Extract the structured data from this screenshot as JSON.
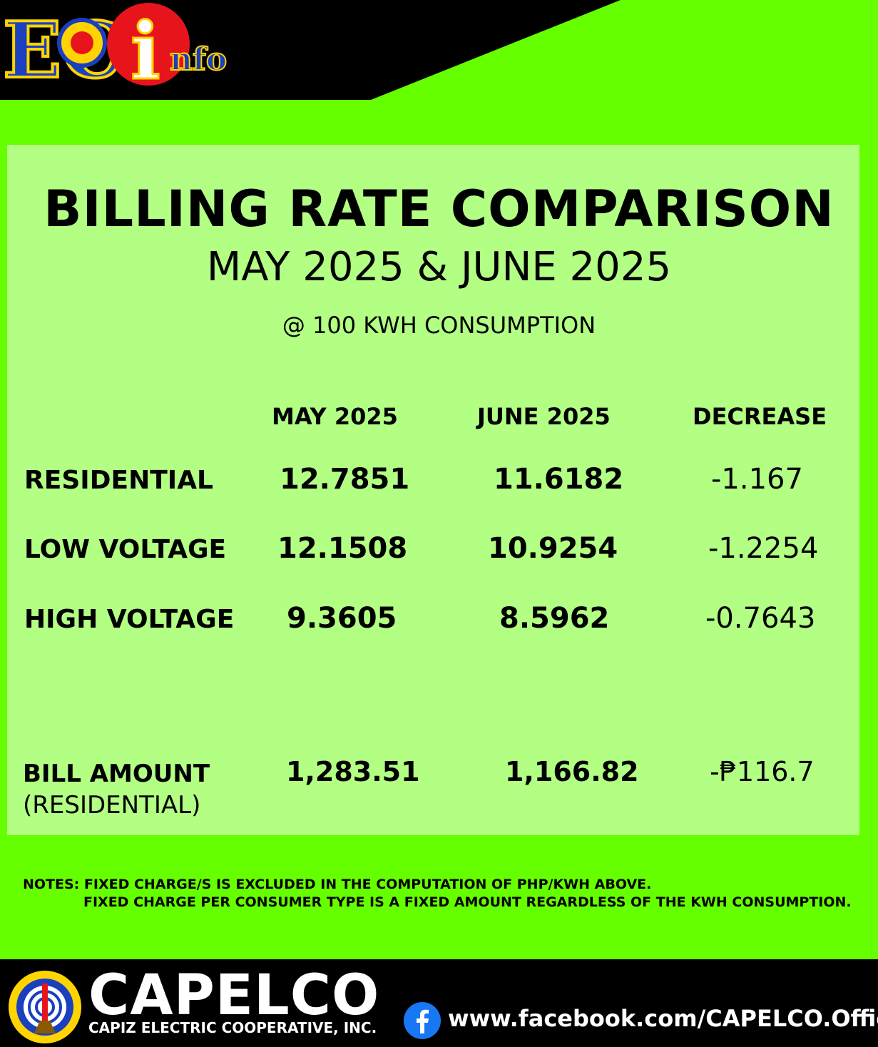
{
  "header": {
    "logo_text_ec": "EC",
    "logo_text_i": "i",
    "logo_text_nfo": "nfo"
  },
  "title": "BILLING RATE COMPARISON",
  "subtitle": "MAY 2025 & JUNE 2025",
  "consumption_note": "@ 100 KWH CONSUMPTION",
  "columns": [
    "MAY 2025",
    "JUNE 2025",
    "DECREASE"
  ],
  "rows": [
    {
      "label": "RESIDENTIAL",
      "may": "12.7851",
      "june": "11.6182",
      "decrease": "-1.167"
    },
    {
      "label": "LOW VOLTAGE",
      "may": "12.1508",
      "june": "10.9254",
      "decrease": "-1.2254"
    },
    {
      "label": "HIGH VOLTAGE",
      "may": "9.3605",
      "june": "8.5962",
      "decrease": "-0.7643"
    }
  ],
  "bill": {
    "label_line1": "BILL AMOUNT",
    "label_line2": "(RESIDENTIAL)",
    "may": "1,283.51",
    "june": "1,166.82",
    "decrease": "-₱116.7"
  },
  "notes": {
    "line1": "NOTES: FIXED CHARGE/S IS EXCLUDED IN THE COMPUTATION OF PHP/KWH ABOVE.",
    "line2": "FIXED CHARGE PER CONSUMER TYPE IS A FIXED AMOUNT  REGARDLESS OF THE KWH CONSUMPTION."
  },
  "footer": {
    "brand": "CAPELCO",
    "brand_sub": "CAPIZ ELECTRIC COOPERATIVE, INC.",
    "facebook_url": "www.facebook.com/CAPELCO.Official",
    "seal_text": "CAPIZ ELECTRIC COOPERATIVE, INC."
  },
  "colors": {
    "background": "#66ff00",
    "panel": "#b2ff84",
    "bar": "#000000",
    "facebook": "#1877f2",
    "logo_blue": "#1a3fbf",
    "logo_yellow": "#ffd400",
    "logo_red": "#e8141c"
  }
}
